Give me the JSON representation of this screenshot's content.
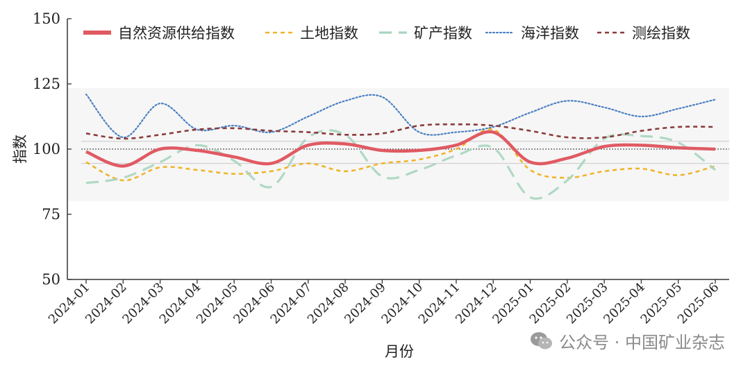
{
  "chart_data": {
    "type": "line",
    "title": "",
    "xlabel": "月份",
    "ylabel": "指数",
    "ylim": [
      50,
      150
    ],
    "yticks": [
      50,
      75,
      100,
      125,
      150
    ],
    "categories": [
      "2024-01",
      "2024-02",
      "2024-03",
      "2024-04",
      "2024-05",
      "2024-06",
      "2024-07",
      "2024-08",
      "2024-09",
      "2024-10",
      "2024-11",
      "2024-12",
      "2025-01",
      "2025-02",
      "2025-03",
      "2025-04",
      "2025-05",
      "2025-06"
    ],
    "reference_line": 100,
    "band": [
      94.5,
      103
    ],
    "legend_position": "top",
    "series": [
      {
        "name": "自然资源供给指数",
        "style": "solid",
        "color": "#e05a63",
        "values": [
          99,
          93.5,
          100,
          99.5,
          97,
          94.5,
          101.5,
          102,
          99.5,
          99.5,
          101.5,
          106.5,
          95,
          96.5,
          101,
          101.5,
          100.5,
          100
        ]
      },
      {
        "name": "土地指数",
        "style": "dashed",
        "color": "#f0b429",
        "values": [
          95,
          88,
          93,
          92,
          90.5,
          91.5,
          94.5,
          91.5,
          94.5,
          96,
          100,
          107.5,
          92,
          89,
          91.5,
          92.5,
          90,
          93.5
        ]
      },
      {
        "name": "矿产指数",
        "style": "longdash",
        "color": "#a8d5bf",
        "values": [
          87,
          89,
          95,
          101.5,
          95.5,
          85.5,
          104.5,
          105.5,
          89.5,
          92,
          97.5,
          100.5,
          81.5,
          88,
          104,
          105,
          102.5,
          92
        ]
      },
      {
        "name": "海洋指数",
        "style": "dotted",
        "color": "#4a7fc1",
        "values": [
          121,
          104.5,
          117.5,
          107.5,
          109,
          106.5,
          112.5,
          118.5,
          120,
          106.5,
          106.5,
          108.5,
          114,
          118.5,
          116,
          112.5,
          115.5,
          119
        ]
      },
      {
        "name": "测绘指数",
        "style": "dashed",
        "color": "#8b3a3a",
        "values": [
          106,
          104,
          105.5,
          107.5,
          108,
          107,
          106.5,
          105.5,
          106,
          109,
          109.5,
          109,
          107,
          104.5,
          104.5,
          107,
          108.5,
          108.5
        ]
      }
    ]
  },
  "watermark": {
    "text": "公众号 · 中国矿业杂志",
    "icon": "wechat-icon"
  }
}
